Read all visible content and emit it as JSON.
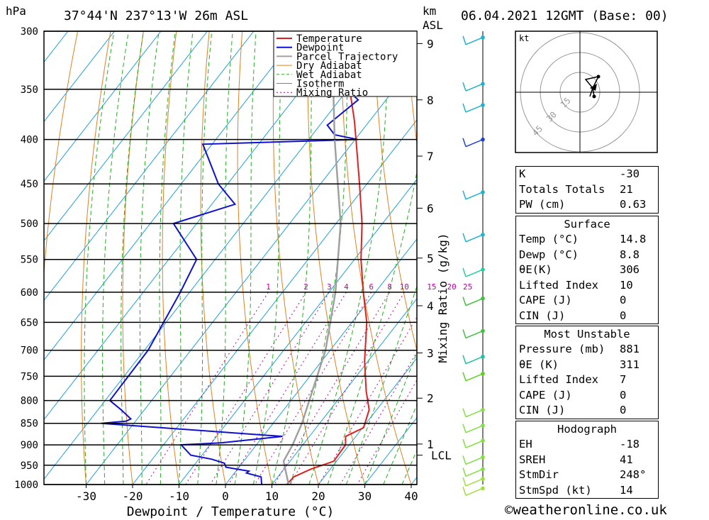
{
  "header": {
    "hpa_unit": "hPa",
    "location": "37°44'N  237°13'W  26m  ASL",
    "km_label": "km",
    "asl_label": "ASL",
    "datetime": "06.04.2021  12GMT  (Base: 00)"
  },
  "legend": [
    "Temperature",
    "Dewpoint",
    "Parcel Trajectory",
    "Dry Adiabat",
    "Wet Adiabat",
    "Isotherm",
    "Mixing Ratio"
  ],
  "colors": {
    "temperature": "#e02020",
    "dewpoint": "#1010d0",
    "parcel": "#a0a0a0",
    "dry_adiabat": "#e08020",
    "wet_adiabat": "#20b020",
    "isotherm": "#20a0e0",
    "mixing_ratio": "#c000a0"
  },
  "chart_data": {
    "type": "line",
    "subtype": "skew-T log-P",
    "xlabel": "Dewpoint / Temperature (°C)",
    "ylabel_right": "Mixing Ratio (g/kg)",
    "pressure_levels": [
      300,
      350,
      400,
      450,
      500,
      550,
      600,
      650,
      700,
      750,
      800,
      850,
      900,
      950,
      1000
    ],
    "x_ticks": [
      -30,
      -20,
      -10,
      0,
      10,
      20,
      30,
      40
    ],
    "km_ticks": [
      {
        "km": 1,
        "p": 898
      },
      {
        "km": 2,
        "p": 795
      },
      {
        "km": 3,
        "p": 705
      },
      {
        "km": 4,
        "p": 622
      },
      {
        "km": 5,
        "p": 548
      },
      {
        "km": 6,
        "p": 480
      },
      {
        "km": 7,
        "p": 418
      },
      {
        "km": 8,
        "p": 360
      },
      {
        "km": 9,
        "p": 310
      }
    ],
    "lcl": {
      "label": "LCL",
      "p": 925
    },
    "mixing_ratio_labels": [
      "1",
      "2",
      "3",
      "4",
      "6",
      "8",
      "10",
      "15",
      "20",
      "25"
    ],
    "series": [
      {
        "name": "Temperature",
        "points": [
          [
            1015,
            14.8
          ],
          [
            1000,
            13.2
          ],
          [
            980,
            13.4
          ],
          [
            960,
            15.8
          ],
          [
            940,
            19.4
          ],
          [
            900,
            19.2
          ],
          [
            880,
            17.8
          ],
          [
            860,
            20.2
          ],
          [
            820,
            18.4
          ],
          [
            780,
            14.6
          ],
          [
            720,
            9.2
          ],
          [
            650,
            3.2
          ],
          [
            600,
            -2.6
          ],
          [
            550,
            -8.6
          ],
          [
            500,
            -14.4
          ],
          [
            450,
            -21.6
          ],
          [
            400,
            -29.8
          ],
          [
            380,
            -33.4
          ],
          [
            350,
            -39.6
          ],
          [
            300,
            -49.4
          ]
        ]
      },
      {
        "name": "Dewpoint",
        "points": [
          [
            1015,
            8.8
          ],
          [
            1000,
            7.8
          ],
          [
            980,
            6.4
          ],
          [
            970,
            2.6
          ],
          [
            965,
            2.8
          ],
          [
            955,
            -2.8
          ],
          [
            945,
            -3.8
          ],
          [
            935,
            -7.2
          ],
          [
            925,
            -12.4
          ],
          [
            900,
            -16.2
          ],
          [
            895,
            -7.8
          ],
          [
            880,
            4.2
          ],
          [
            850,
            -37
          ],
          [
            845,
            -32
          ],
          [
            840,
            -31.4
          ],
          [
            820,
            -35
          ],
          [
            800,
            -39
          ],
          [
            700,
            -39.2
          ],
          [
            600,
            -42
          ],
          [
            550,
            -44
          ],
          [
            500,
            -55
          ],
          [
            475,
            -45
          ],
          [
            450,
            -52
          ],
          [
            405,
            -62
          ],
          [
            400,
            -29.4
          ],
          [
            395,
            -35.2
          ],
          [
            385,
            -38.4
          ],
          [
            360,
            -36
          ],
          [
            345,
            -42.4
          ],
          [
            330,
            -43.4
          ],
          [
            318,
            -48
          ],
          [
            308,
            -44.8
          ],
          [
            300,
            -50
          ]
        ]
      },
      {
        "name": "Parcel Trajectory",
        "points": [
          [
            1015,
            14.8
          ],
          [
            940,
            8.6
          ],
          [
            900,
            7.8
          ],
          [
            850,
            6.2
          ],
          [
            700,
            -1
          ],
          [
            600,
            -8.6
          ],
          [
            500,
            -19
          ],
          [
            400,
            -34.4
          ],
          [
            300,
            -53.2
          ]
        ]
      }
    ],
    "wind_barbs": [
      {
        "p": 305,
        "c": "#20b0d0"
      },
      {
        "p": 345,
        "c": "#20b0d0"
      },
      {
        "p": 365,
        "c": "#20b0d0"
      },
      {
        "p": 400,
        "c": "#2040d0"
      },
      {
        "p": 460,
        "c": "#20b0d0"
      },
      {
        "p": 515,
        "c": "#20b0d0"
      },
      {
        "p": 565,
        "c": "#20d0a0"
      },
      {
        "p": 610,
        "c": "#40c040"
      },
      {
        "p": 665,
        "c": "#40c040"
      },
      {
        "p": 712,
        "c": "#20c0a0"
      },
      {
        "p": 745,
        "c": "#60d020"
      },
      {
        "p": 820,
        "c": "#80e040"
      },
      {
        "p": 855,
        "c": "#80e040"
      },
      {
        "p": 890,
        "c": "#80e040"
      },
      {
        "p": 930,
        "c": "#80e040"
      },
      {
        "p": 960,
        "c": "#80e040"
      },
      {
        "p": 985,
        "c": "#a0e040"
      },
      {
        "p": 1010,
        "c": "#a0e040"
      }
    ],
    "hodograph": {
      "unit": "kt",
      "rings": [
        "15",
        "30",
        "45"
      ]
    }
  },
  "indices": [
    {
      "k": "K",
      "v": "-30"
    },
    {
      "k": "Totals Totals",
      "v": "21"
    },
    {
      "k": "PW (cm)",
      "v": "0.63"
    }
  ],
  "surface": {
    "title": "Surface",
    "rows": [
      {
        "k": "Temp (°C)",
        "v": "14.8"
      },
      {
        "k": "Dewp (°C)",
        "v": "8.8"
      },
      {
        "k": "θE(K)",
        "v": "306"
      },
      {
        "k": "Lifted Index",
        "v": "10"
      },
      {
        "k": "CAPE (J)",
        "v": "0"
      },
      {
        "k": "CIN (J)",
        "v": "0"
      }
    ]
  },
  "most_unstable": {
    "title": "Most Unstable",
    "rows": [
      {
        "k": "Pressure (mb)",
        "v": "881"
      },
      {
        "k": "θE (K)",
        "v": "311"
      },
      {
        "k": "Lifted Index",
        "v": "7"
      },
      {
        "k": "CAPE (J)",
        "v": "0"
      },
      {
        "k": "CIN (J)",
        "v": "0"
      }
    ]
  },
  "hodograph_table": {
    "title": "Hodograph",
    "rows": [
      {
        "k": "EH",
        "v": "-18"
      },
      {
        "k": "SREH",
        "v": "41"
      },
      {
        "k": "StmDir",
        "v": "248°"
      },
      {
        "k": "StmSpd (kt)",
        "v": "14"
      }
    ]
  },
  "footer": "©weatheronline.co.uk"
}
